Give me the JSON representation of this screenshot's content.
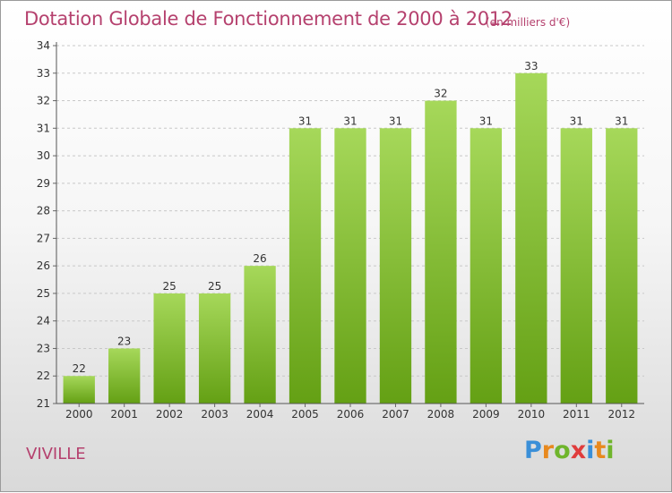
{
  "header": {
    "title": "Dotation Globale de Fonctionnement de 2000 à 2012",
    "unit": "(en milliers d'€)"
  },
  "footer": {
    "commune": "VIVILLE",
    "logo": {
      "letters": [
        "P",
        "r",
        "o",
        "x",
        "i",
        "t",
        "i"
      ],
      "colors": [
        "#3a8fd8",
        "#e8891e",
        "#6fb52c",
        "#e03c3c",
        "#3a8fd8",
        "#e8891e",
        "#6fb52c"
      ]
    }
  },
  "chart_data": {
    "type": "bar",
    "categories": [
      "2000",
      "2001",
      "2002",
      "2003",
      "2004",
      "2005",
      "2006",
      "2007",
      "2008",
      "2009",
      "2010",
      "2011",
      "2012"
    ],
    "values": [
      22,
      23,
      25,
      25,
      26,
      31,
      31,
      31,
      32,
      31,
      33,
      31,
      31
    ],
    "data_labels": [
      "22",
      "23",
      "25",
      "25",
      "26",
      "31",
      "31",
      "31",
      "32",
      "31",
      "33",
      "31",
      "31"
    ],
    "title": "Dotation Globale de Fonctionnement de 2000 à 2012",
    "xlabel": "",
    "ylabel": "",
    "ylim": [
      21,
      34
    ],
    "yticks": [
      21,
      22,
      23,
      24,
      25,
      26,
      27,
      28,
      29,
      30,
      31,
      32,
      33,
      34
    ],
    "grid": true,
    "bar_color_top": "#a6d85a",
    "bar_color_bottom": "#64a014"
  }
}
